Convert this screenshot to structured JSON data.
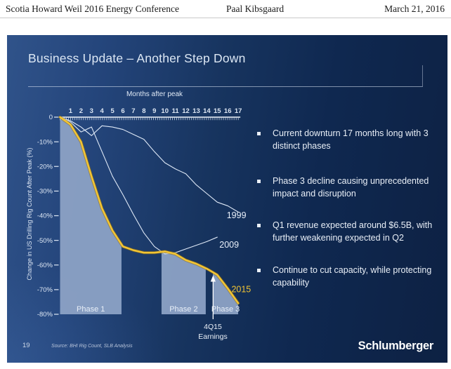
{
  "header": {
    "left": "Scotia Howard Weil 2016 Energy Conference",
    "center": "Paal Kibsgaard",
    "right": "March 21, 2016"
  },
  "slide": {
    "title": "Business Update – Another Step Down",
    "bullets": [
      "Current downturn 17 months long with 3 distinct phases",
      "Phase 3 decline causing unprecedented impact and disruption",
      "Q1 revenue expected around $6.5B, with further weakening expected in Q2",
      "Continue to cut capacity, while protecting capability"
    ],
    "footer": {
      "page_number": "19",
      "source": "Source: BHI Rig Count, SLB Analysis",
      "logo": "Schlumberger"
    }
  },
  "colors": {
    "accent_gold": "#f2c433",
    "phase_fill": "#8ca2c5",
    "line_white": "#dfe9f7",
    "slide_bg_dark": "#0d2143",
    "slide_bg_light": "#30538a"
  },
  "chart_data": {
    "type": "line",
    "x_axis": {
      "title": "Months after peak",
      "range": [
        0,
        17
      ],
      "ticks": [
        1,
        2,
        3,
        4,
        5,
        6,
        7,
        8,
        9,
        10,
        11,
        12,
        13,
        14,
        15,
        16,
        17
      ]
    },
    "y_axis": {
      "title": "Change in US Drilling Rig Count After Peak (%)",
      "range": [
        -80,
        0
      ],
      "ticks": [
        {
          "value": 0,
          "label": "0"
        },
        {
          "value": -10,
          "label": "-10%"
        },
        {
          "value": -20,
          "label": "-20%"
        },
        {
          "value": -30,
          "label": "-30%"
        },
        {
          "value": -40,
          "label": "-40%"
        },
        {
          "value": -50,
          "label": "-50%"
        },
        {
          "value": -60,
          "label": "-60%"
        },
        {
          "value": -70,
          "label": "-70%"
        },
        {
          "value": -80,
          "label": "-80%"
        }
      ]
    },
    "grid": false,
    "series": [
      {
        "name": "1999",
        "color": "#dfe9f7",
        "stroke_width": 1.1,
        "values": [
          0,
          -1.5,
          -4,
          -7.5,
          -3.5,
          -4,
          -5,
          -7,
          -9,
          -14,
          -18.5,
          -21,
          -23,
          -27.5,
          -31,
          -34.5,
          -36,
          -38.5
        ],
        "label_at": {
          "month": 15.9,
          "value": -41
        }
      },
      {
        "name": "2009",
        "color": "#dfe9f7",
        "stroke_width": 1.1,
        "values": [
          0,
          -2,
          -6,
          -4,
          -14,
          -24,
          -31.5,
          -39.5,
          -47,
          -52.5,
          -55.5,
          -55,
          -53.5,
          -52,
          -50.5,
          -48.7
        ],
        "label_at": {
          "month": 15.2,
          "value": -53
        }
      },
      {
        "name": "2015",
        "color": "#f2c433",
        "stroke_width": 2.6,
        "under_color": "#8a6a12",
        "area_fill": true,
        "values": [
          0,
          -3,
          -10,
          -24,
          -37,
          -46,
          -52.5,
          -54,
          -55,
          -55,
          -54.5,
          -55.5,
          -58,
          -59.5,
          -61.5,
          -64,
          -69.5,
          -75.5
        ],
        "label_at": {
          "month": 16.35,
          "value": -71
        }
      }
    ],
    "phases": [
      {
        "label": "Phase 1",
        "from": 0,
        "to": 5.86
      },
      {
        "label": "Phase 2",
        "from": 9.68,
        "to": 13.9
      },
      {
        "label": "Phase 3",
        "from": 14.58,
        "to": 17
      }
    ],
    "phase_fill_color": "#8ca2c5",
    "annotation": {
      "lines": [
        "4Q15",
        "Earnings"
      ],
      "month": 14.6,
      "tip_value": -64.5,
      "base_value": -82
    }
  }
}
